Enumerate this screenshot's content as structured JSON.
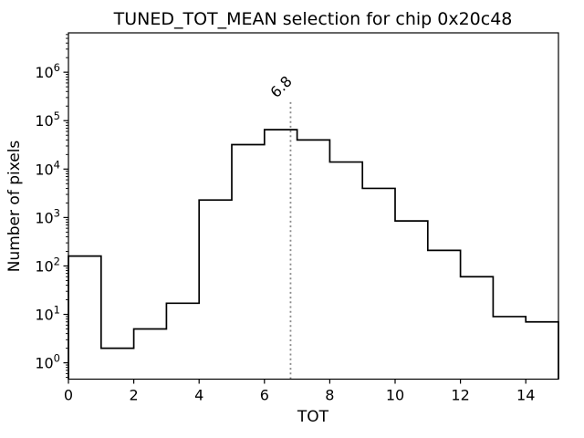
{
  "chart_data": {
    "type": "bar",
    "subtype": "step-histogram",
    "title": "TUNED_TOT_MEAN selection for chip 0x20c48",
    "xlabel": "TOT",
    "ylabel": "Number of pixels",
    "yscale": "log",
    "xlim": [
      0,
      15
    ],
    "ylim": [
      0.46,
      6500000
    ],
    "bin_edges": [
      0,
      1,
      2,
      3,
      4,
      5,
      6,
      7,
      8,
      9,
      10,
      11,
      12,
      13,
      14,
      15
    ],
    "counts": [
      160,
      2,
      5,
      17,
      2300,
      32000,
      65000,
      40000,
      14000,
      4000,
      850,
      210,
      60,
      9,
      7
    ],
    "xticks": [
      0,
      2,
      4,
      6,
      8,
      10,
      12,
      14
    ],
    "ytick_exponents": [
      0,
      1,
      2,
      3,
      4,
      5,
      6
    ],
    "grid": false,
    "legend": null,
    "line_color": "#000000",
    "background_color": "#ffffff",
    "vline": {
      "x": 6.8,
      "label": "6.8",
      "style": "dotted",
      "color": "#8a8a8a",
      "label_color": "#999999",
      "ymax_fraction": 0.8
    }
  }
}
